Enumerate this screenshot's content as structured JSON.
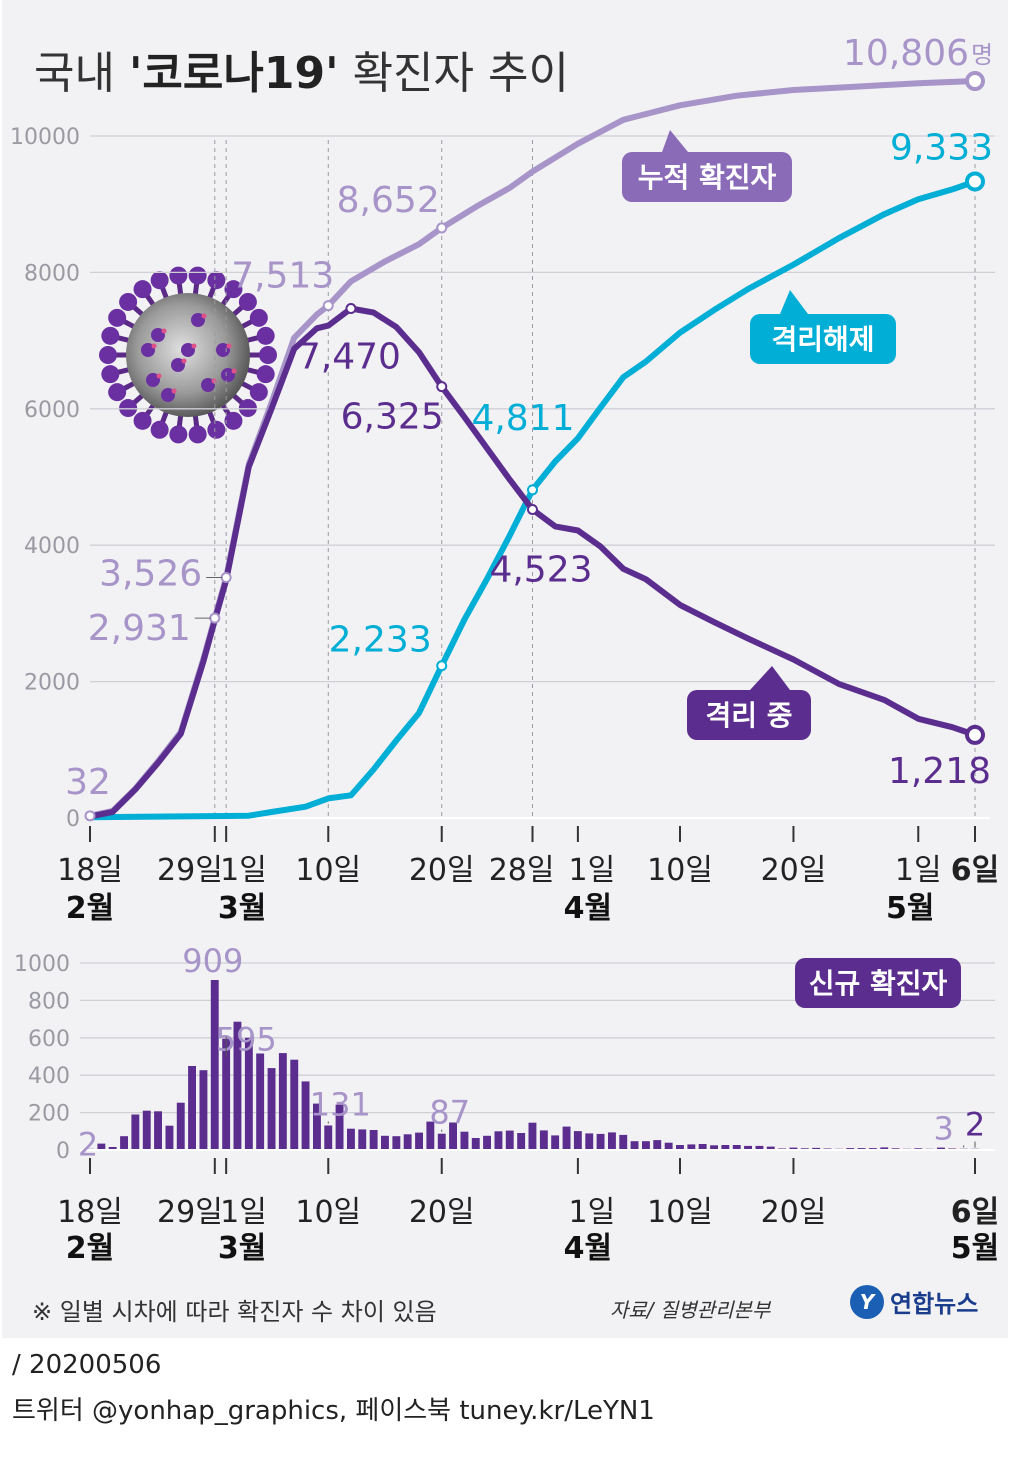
{
  "title": {
    "prefix": "국내 ",
    "emphasis": "'코로나19'",
    "suffix": " 확진자 추이"
  },
  "colors": {
    "cumulative": "#a794c8",
    "cumulative_badge": "#8a6bb8",
    "released": "#00aed6",
    "isolated": "#5b2d8e",
    "new_cases": "#5b2d8e",
    "panel": "#f2f2f4",
    "grid": "#cfcfd6"
  },
  "chart_data": [
    {
      "type": "line",
      "y_ticks": [
        "0",
        "2000",
        "4000",
        "6000",
        "8000",
        "10000"
      ],
      "ylim": [
        0,
        11000
      ],
      "x_range": [
        "2020-02-18",
        "2020-05-06"
      ],
      "x_ticks": [
        {
          "date": "2020-02-18",
          "label": "18일"
        },
        {
          "date": "2020-02-29",
          "label": "29일"
        },
        {
          "date": "2020-03-01",
          "label": "1일"
        },
        {
          "date": "2020-03-10",
          "label": "10일"
        },
        {
          "date": "2020-03-20",
          "label": "20일"
        },
        {
          "date": "2020-03-28",
          "label": "28일"
        },
        {
          "date": "2020-04-01",
          "label": "1일"
        },
        {
          "date": "2020-04-10",
          "label": "10일"
        },
        {
          "date": "2020-04-20",
          "label": "20일"
        },
        {
          "date": "2020-05-01",
          "label": "1일"
        },
        {
          "date": "2020-05-06",
          "label": "6일"
        }
      ],
      "month_labels": [
        {
          "date": "2020-02-18",
          "label": "2월"
        },
        {
          "date": "2020-03-01",
          "label": "3월"
        },
        {
          "date": "2020-04-01",
          "label": "4월"
        },
        {
          "date": "2020-05-01",
          "label": "5월"
        }
      ],
      "unit_suffix": "명",
      "series": [
        {
          "name": "누적 확진자",
          "color_key": "cumulative",
          "points": [
            [
              "2020-02-18",
              32
            ],
            [
              "2020-02-20",
              104
            ],
            [
              "2020-02-22",
              433
            ],
            [
              "2020-02-24",
              833
            ],
            [
              "2020-02-26",
              1261
            ],
            [
              "2020-02-28",
              2337
            ],
            [
              "2020-02-29",
              2931
            ],
            [
              "2020-03-01",
              3526
            ],
            [
              "2020-03-03",
              5186
            ],
            [
              "2020-03-05",
              6088
            ],
            [
              "2020-03-07",
              7041
            ],
            [
              "2020-03-09",
              7382
            ],
            [
              "2020-03-10",
              7513
            ],
            [
              "2020-03-12",
              7869
            ],
            [
              "2020-03-15",
              8162
            ],
            [
              "2020-03-18",
              8413
            ],
            [
              "2020-03-20",
              8652
            ],
            [
              "2020-03-23",
              8961
            ],
            [
              "2020-03-26",
              9241
            ],
            [
              "2020-03-28",
              9478
            ],
            [
              "2020-04-01",
              9887
            ],
            [
              "2020-04-05",
              10237
            ],
            [
              "2020-04-10",
              10450
            ],
            [
              "2020-04-15",
              10591
            ],
            [
              "2020-04-20",
              10674
            ],
            [
              "2020-04-25",
              10718
            ],
            [
              "2020-05-01",
              10774
            ],
            [
              "2020-05-06",
              10806
            ]
          ]
        },
        {
          "name": "격리해제",
          "color_key": "released",
          "points": [
            [
              "2020-02-18",
              12
            ],
            [
              "2020-02-25",
              22
            ],
            [
              "2020-03-01",
              30
            ],
            [
              "2020-03-03",
              34
            ],
            [
              "2020-03-05",
              88
            ],
            [
              "2020-03-08",
              166
            ],
            [
              "2020-03-10",
              288
            ],
            [
              "2020-03-12",
              333
            ],
            [
              "2020-03-14",
              714
            ],
            [
              "2020-03-16",
              1137
            ],
            [
              "2020-03-18",
              1540
            ],
            [
              "2020-03-20",
              2233
            ],
            [
              "2020-03-22",
              2909
            ],
            [
              "2020-03-24",
              3507
            ],
            [
              "2020-03-26",
              4144
            ],
            [
              "2020-03-28",
              4811
            ],
            [
              "2020-03-30",
              5228
            ],
            [
              "2020-04-01",
              5567
            ],
            [
              "2020-04-03",
              6021
            ],
            [
              "2020-04-05",
              6463
            ],
            [
              "2020-04-07",
              6694
            ],
            [
              "2020-04-10",
              7117
            ],
            [
              "2020-04-13",
              7447
            ],
            [
              "2020-04-16",
              7757
            ],
            [
              "2020-04-20",
              8114
            ],
            [
              "2020-04-24",
              8501
            ],
            [
              "2020-04-28",
              8854
            ],
            [
              "2020-05-01",
              9072
            ],
            [
              "2020-05-04",
              9217
            ],
            [
              "2020-05-06",
              9333
            ]
          ]
        },
        {
          "name": "격리 중",
          "color_key": "isolated",
          "points": [
            [
              "2020-02-18",
              20
            ],
            [
              "2020-02-20",
              90
            ],
            [
              "2020-02-22",
              420
            ],
            [
              "2020-02-24",
              810
            ],
            [
              "2020-02-26",
              1235
            ],
            [
              "2020-02-28",
              2300
            ],
            [
              "2020-02-29",
              2900
            ],
            [
              "2020-03-01",
              3490
            ],
            [
              "2020-03-03",
              5150
            ],
            [
              "2020-03-05",
              6000
            ],
            [
              "2020-03-07",
              6880
            ],
            [
              "2020-03-09",
              7180
            ],
            [
              "2020-03-10",
              7220
            ],
            [
              "2020-03-12",
              7470
            ],
            [
              "2020-03-14",
              7410
            ],
            [
              "2020-03-16",
              7200
            ],
            [
              "2020-03-18",
              6830
            ],
            [
              "2020-03-20",
              6325
            ],
            [
              "2020-03-22",
              5880
            ],
            [
              "2020-03-24",
              5420
            ],
            [
              "2020-03-26",
              4960
            ],
            [
              "2020-03-28",
              4523
            ],
            [
              "2020-03-30",
              4275
            ],
            [
              "2020-04-01",
              4216
            ],
            [
              "2020-04-03",
              3979
            ],
            [
              "2020-04-05",
              3654
            ],
            [
              "2020-04-07",
              3500
            ],
            [
              "2020-04-10",
              3125
            ],
            [
              "2020-04-13",
              2873
            ],
            [
              "2020-04-16",
              2630
            ],
            [
              "2020-04-20",
              2324
            ],
            [
              "2020-04-24",
              1967
            ],
            [
              "2020-04-28",
              1731
            ],
            [
              "2020-05-01",
              1454
            ],
            [
              "2020-05-04",
              1332
            ],
            [
              "2020-05-06",
              1218
            ]
          ]
        }
      ],
      "annotations": [
        {
          "series": "누적 확진자",
          "date": "2020-02-18",
          "value": 32,
          "label": "32"
        },
        {
          "series": "누적 확진자",
          "date": "2020-02-29",
          "value": 2931,
          "label": "2,931"
        },
        {
          "series": "누적 확진자",
          "date": "2020-03-01",
          "value": 3526,
          "label": "3,526"
        },
        {
          "series": "누적 확진자",
          "date": "2020-03-10",
          "value": 7513,
          "label": "7,513"
        },
        {
          "series": "누적 확진자",
          "date": "2020-03-20",
          "value": 8652,
          "label": "8,652"
        },
        {
          "series": "누적 확진자",
          "date": "2020-05-06",
          "value": 10806,
          "label": "10,806"
        },
        {
          "series": "격리해제",
          "date": "2020-03-20",
          "value": 2233,
          "label": "2,233"
        },
        {
          "series": "격리해제",
          "date": "2020-03-28",
          "value": 4811,
          "label": "4,811"
        },
        {
          "series": "격리해제",
          "date": "2020-05-06",
          "value": 9333,
          "label": "9,333"
        },
        {
          "series": "격리 중",
          "date": "2020-03-12",
          "value": 7470,
          "label": "7,470"
        },
        {
          "series": "격리 중",
          "date": "2020-03-20",
          "value": 6325,
          "label": "6,325"
        },
        {
          "series": "격리 중",
          "date": "2020-03-28",
          "value": 4523,
          "label": "4,523"
        },
        {
          "series": "격리 중",
          "date": "2020-05-06",
          "value": 1218,
          "label": "1,218"
        }
      ],
      "series_badges": [
        "누적 확진자",
        "격리해제",
        "격리 중"
      ],
      "grid": true
    },
    {
      "type": "bar",
      "title": "신규 확진자",
      "y_ticks": [
        "0",
        "200",
        "400",
        "600",
        "800",
        "1000"
      ],
      "ylim": [
        0,
        1000
      ],
      "x_range": [
        "2020-02-18",
        "2020-05-06"
      ],
      "x_ticks": [
        {
          "date": "2020-02-18",
          "label": "18일"
        },
        {
          "date": "2020-02-29",
          "label": "29일"
        },
        {
          "date": "2020-03-01",
          "label": "1일"
        },
        {
          "date": "2020-03-10",
          "label": "10일"
        },
        {
          "date": "2020-03-20",
          "label": "20일"
        },
        {
          "date": "2020-04-01",
          "label": "1일"
        },
        {
          "date": "2020-04-10",
          "label": "10일"
        },
        {
          "date": "2020-04-20",
          "label": "20일"
        },
        {
          "date": "2020-05-06",
          "label": "6일"
        }
      ],
      "month_labels": [
        {
          "date": "2020-02-18",
          "label": "2월"
        },
        {
          "date": "2020-03-01",
          "label": "3월"
        },
        {
          "date": "2020-04-01",
          "label": "4월"
        },
        {
          "date": "2020-05-06",
          "label": "5월"
        }
      ],
      "start_date": "2020-02-18",
      "values": [
        2,
        34,
        16,
        74,
        190,
        210,
        207,
        130,
        253,
        449,
        427,
        909,
        595,
        686,
        600,
        516,
        438,
        518,
        483,
        367,
        248,
        131,
        242,
        114,
        110,
        107,
        76,
        74,
        84,
        93,
        152,
        87,
        147,
        98,
        64,
        76,
        100,
        104,
        91,
        146,
        105,
        78,
        125,
        101,
        89,
        86,
        94,
        81,
        47,
        47,
        53,
        39,
        27,
        30,
        32,
        25,
        27,
        27,
        22,
        22,
        18,
        8,
        13,
        9,
        11,
        8,
        6,
        10,
        10,
        10,
        14,
        9,
        4,
        9,
        6,
        13,
        8,
        3,
        2
      ],
      "annotations": [
        {
          "date": "2020-02-18",
          "value": 2,
          "label": "2"
        },
        {
          "date": "2020-02-29",
          "value": 909,
          "label": "909"
        },
        {
          "date": "2020-03-01",
          "value": 595,
          "label": "595"
        },
        {
          "date": "2020-03-10",
          "value": 131,
          "label": "131"
        },
        {
          "date": "2020-03-20",
          "value": 87,
          "label": "87"
        },
        {
          "date": "2020-05-05",
          "value": 3,
          "label": "3"
        },
        {
          "date": "2020-05-06",
          "value": 2,
          "label": "2"
        }
      ],
      "grid": true
    }
  ],
  "footer": {
    "note": "※ 일별 시차에 따라 확진자 수 차이 있음",
    "source": "자료/ 질병관리본부",
    "logo_text": "연합뉴스",
    "logo_mark": "Y"
  },
  "credits": {
    "date_line": "/ 20200506",
    "sns_line": "트위터 @yonhap_graphics, 페이스북 tuney.kr/LeYN1"
  }
}
